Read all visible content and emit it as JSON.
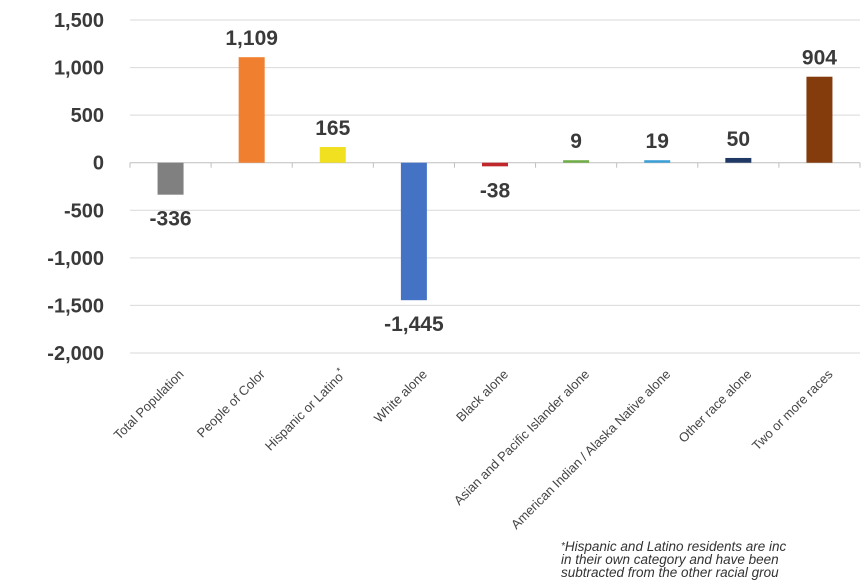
{
  "chart_data": {
    "type": "bar",
    "categories": [
      "Total Population",
      "People of Color",
      "Hispanic or Latino*",
      "White alone",
      "Black alone",
      "Asian and Pacific Islander alone",
      "American Indian / Alaska Native alone",
      "Other race alone",
      "Two or more races"
    ],
    "values": [
      -336,
      1109,
      165,
      -1445,
      -38,
      9,
      19,
      50,
      904
    ],
    "value_labels": [
      "-336",
      "1,109",
      "165",
      "-1,445",
      "-38",
      "9",
      "19",
      "50",
      "904"
    ],
    "colors": [
      "#808080",
      "#f08030",
      "#f0e020",
      "#4472c4",
      "#c0282c",
      "#70ad47",
      "#3ca0d8",
      "#1f3864",
      "#843c0c"
    ],
    "ylim": [
      -2000,
      1500
    ],
    "yticks": [
      1500,
      1000,
      500,
      0,
      -500,
      -1000,
      -1500,
      -2000
    ],
    "ytick_labels": [
      "1,500",
      "1,000",
      "500",
      "0",
      "-500",
      "-1,000",
      "-1,500",
      "-2,000"
    ],
    "grid": true,
    "title": "",
    "xlabel": "",
    "ylabel": ""
  },
  "footnote": {
    "marker": "*",
    "text": "Hispanic and Latino residents are inc\nin their own category and have been\nsubtracted from the other racial grou"
  }
}
